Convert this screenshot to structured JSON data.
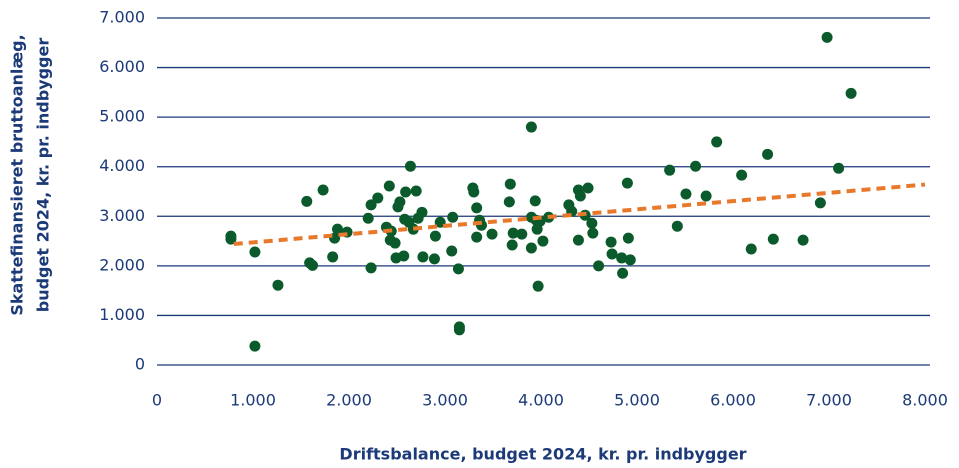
{
  "chart_data": {
    "type": "scatter",
    "xlabel": "Driftsbalance, budget 2024, kr. pr. indbygger",
    "ylabel": [
      "Skattefinansieret bruttoanlæg,",
      "budget 2024, kr. pr. indbygger"
    ],
    "color": "#0b5a2c",
    "x": [
      770,
      770,
      1020,
      1020,
      1260,
      1560,
      1590,
      1620,
      1730,
      1830,
      1850,
      1880,
      1980,
      2200,
      2230,
      2230,
      2300,
      2390,
      2420,
      2430,
      2440,
      2480,
      2490,
      2510,
      2530,
      2570,
      2580,
      2590,
      2625,
      2640,
      2670,
      2700,
      2720,
      2760,
      2770,
      2890,
      2900,
      2950,
      3070,
      3080,
      3140,
      3150,
      3150,
      3290,
      3300,
      3330,
      3330,
      3360,
      3380,
      3490,
      3670,
      3680,
      3700,
      3710,
      3800,
      3900,
      3900,
      3900,
      3940,
      3950,
      3960,
      3970,
      3990,
      4020,
      4080,
      4290,
      4320,
      4390,
      4390,
      4410,
      4460,
      4490,
      4530,
      4540,
      4600,
      4730,
      4740,
      4840,
      4850,
      4900,
      4910,
      4930,
      5340,
      5420,
      5510,
      5610,
      5720,
      5830,
      6090,
      6190,
      6360,
      6420,
      6730,
      6910,
      6980,
      7100,
      7230
    ],
    "values": [
      2600,
      2540,
      2280,
      380,
      1610,
      3300,
      2060,
      2010,
      3530,
      2180,
      2560,
      2740,
      2680,
      2960,
      3230,
      1960,
      3370,
      2780,
      3610,
      2520,
      2700,
      2460,
      2160,
      3190,
      3290,
      2200,
      2940,
      3490,
      2880,
      4010,
      2740,
      3510,
      2960,
      3080,
      2180,
      2140,
      2600,
      2880,
      2300,
      2980,
      1940,
      770,
      710,
      3570,
      3490,
      3170,
      2580,
      2920,
      2820,
      2640,
      3290,
      3650,
      2420,
      2660,
      2640,
      4800,
      2980,
      2360,
      3310,
      2920,
      2740,
      1590,
      2900,
      2500,
      2980,
      3230,
      3100,
      2520,
      3530,
      3410,
      3020,
      3570,
      2860,
      2660,
      2000,
      2480,
      2240,
      2160,
      1850,
      3670,
      2560,
      2120,
      3930,
      2800,
      3450,
      4010,
      3410,
      4500,
      3830,
      2340,
      4250,
      2540,
      2520,
      3270,
      6610,
      3970,
      5480
    ],
    "trendline": {
      "x": [
        800,
        8000
      ],
      "values": [
        2440,
        3640
      ],
      "color": "#e8782a"
    },
    "xlim": [
      0,
      8000
    ],
    "xticks": [
      0,
      {
        "value": 1000,
        "label": "1.000"
      },
      {
        "value": 2000,
        "label": "2.000"
      },
      {
        "value": 3000,
        "label": "3.000"
      },
      {
        "value": 4000,
        "label": "4.000"
      },
      {
        "value": 5000,
        "label": "5.000"
      },
      {
        "value": 6000,
        "label": "6.000"
      },
      {
        "value": 7000,
        "label": "7.000"
      },
      {
        "value": 8000,
        "label": "8.000"
      }
    ],
    "ylim": [
      0,
      7000
    ],
    "yticks": [
      0,
      {
        "value": 1000,
        "label": "1.000"
      },
      {
        "value": 2000,
        "label": "2.000"
      },
      {
        "value": 3000,
        "label": "3.000"
      },
      {
        "value": 4000,
        "label": "4.000"
      },
      {
        "value": 5000,
        "label": "5.000"
      },
      {
        "value": 6000,
        "label": "6.000"
      },
      {
        "value": 7000,
        "label": "7.000"
      }
    ],
    "grid": true
  }
}
